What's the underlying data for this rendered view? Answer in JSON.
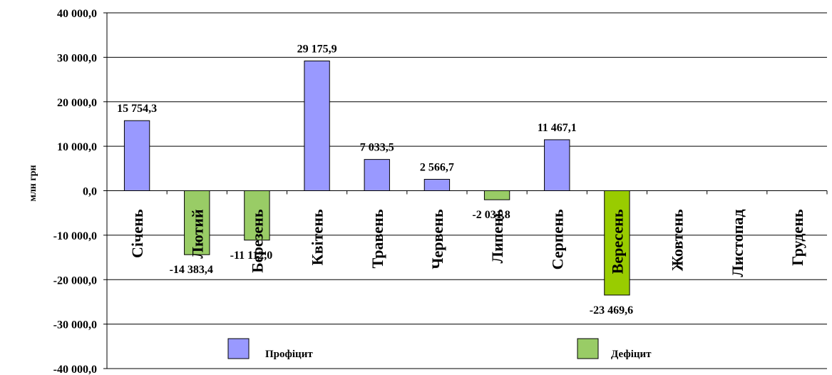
{
  "chart_data": {
    "type": "bar",
    "ylabel": "млн грн",
    "ylim": [
      -40000,
      40000
    ],
    "ytick_step": 10000,
    "yticks": [
      {
        "value": 40000,
        "label": "40 000,0"
      },
      {
        "value": 30000,
        "label": "30 000,0"
      },
      {
        "value": 20000,
        "label": "20 000,0"
      },
      {
        "value": 10000,
        "label": "10 000,0"
      },
      {
        "value": 0,
        "label": "0,0"
      },
      {
        "value": -10000,
        "label": "-10 000,0"
      },
      {
        "value": -20000,
        "label": "-20 000,0"
      },
      {
        "value": -30000,
        "label": "-30 000,0"
      },
      {
        "value": -40000,
        "label": "-40 000,0"
      }
    ],
    "grid": true,
    "categories": [
      "Січень",
      "Лютий",
      "Березень",
      "Квітень",
      "Травень",
      "Червень",
      "Липень",
      "Серпень",
      "Вересень",
      "Жовтень",
      "Листопад",
      "Грудень"
    ],
    "series": [
      {
        "name": "Профіцит",
        "color": "#9999ff",
        "values": [
          15754.3,
          null,
          null,
          29175.9,
          7033.5,
          2566.7,
          null,
          11467.1,
          null,
          null,
          null,
          null
        ],
        "labels": [
          "15 754,3",
          "",
          "",
          "29 175,9",
          "7 033,5",
          "2 566,7",
          "",
          "11 467,1",
          "",
          "",
          "",
          ""
        ]
      },
      {
        "name": "Дефіцит",
        "color": "#99cc66",
        "highlight_color": "#99cc00",
        "highlight_index": 8,
        "values": [
          null,
          -14383.4,
          -11112.0,
          null,
          null,
          null,
          -2031.8,
          null,
          -23469.6,
          null,
          null,
          null
        ],
        "labels": [
          "",
          "-14 383,4",
          "-11 112,0",
          "",
          "",
          "",
          "-2 031,8",
          "",
          "-23 469,6",
          "",
          "",
          ""
        ]
      }
    ],
    "legend": {
      "placement": "bottom"
    }
  }
}
